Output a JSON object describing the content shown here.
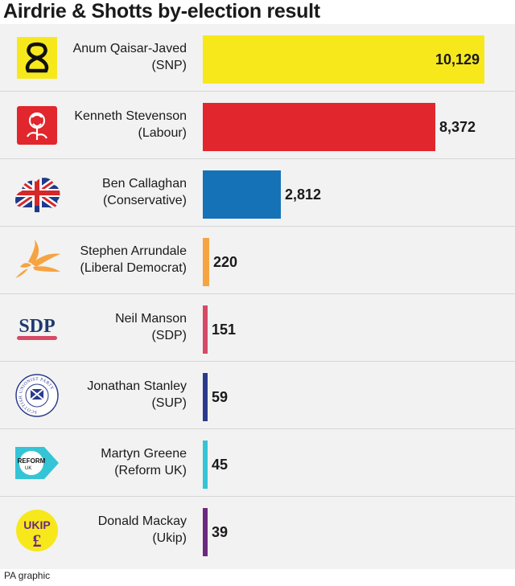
{
  "title": "Airdrie & Shotts by-election result",
  "footer": "PA graphic",
  "logos": {
    "sdp_text": "SDP",
    "reform_text": "REFORM",
    "reform_sub": "UK",
    "ukip_text": "UKIP",
    "ukip_symbol": "£",
    "sup_ring_text": "SCOTTISH UNIONIST PARTY"
  },
  "chart_data": {
    "type": "bar",
    "orientation": "horizontal",
    "title": "Airdrie & Shotts by-election result",
    "xlim": [
      0,
      10129
    ],
    "categories": [
      "Anum Qaisar-Javed (SNP)",
      "Kenneth Stevenson (Labour)",
      "Ben Callaghan (Conservative)",
      "Stephen Arrundale (Liberal Democrat)",
      "Neil Manson (SDP)",
      "Jonathan Stanley (SUP)",
      "Martyn Greene (Reform UK)",
      "Donald Mackay (Ukip)"
    ],
    "values": [
      10129,
      8372,
      2812,
      220,
      151,
      59,
      45,
      39
    ],
    "rows": [
      {
        "name": "Anum Qaisar-Javed",
        "party": "(SNP)",
        "votes": 10129,
        "label": "10,129",
        "color": "#f7e81c",
        "logo": "snp-logo-icon"
      },
      {
        "name": "Kenneth Stevenson",
        "party": "(Labour)",
        "votes": 8372,
        "label": "8,372",
        "color": "#e1262d",
        "logo": "labour-rose-icon"
      },
      {
        "name": "Ben Callaghan",
        "party": "(Conservative)",
        "votes": 2812,
        "label": "2,812",
        "color": "#1572b6",
        "logo": "conservative-tree-icon"
      },
      {
        "name": "Stephen Arrundale",
        "party": "(Liberal Democrat)",
        "votes": 220,
        "label": "220",
        "color": "#f6a341",
        "logo": "libdem-bird-icon"
      },
      {
        "name": "Neil Manson",
        "party": "(SDP)",
        "votes": 151,
        "label": "151",
        "color": "#d64a66",
        "logo": "sdp-logo-icon"
      },
      {
        "name": "Jonathan Stanley",
        "party": "(SUP)",
        "votes": 59,
        "label": "59",
        "color": "#2b3a8c",
        "logo": "sup-logo-icon"
      },
      {
        "name": "Martyn Greene",
        "party": "(Reform UK)",
        "votes": 45,
        "label": "45",
        "color": "#35c4d6",
        "logo": "reform-uk-logo-icon"
      },
      {
        "name": "Donald Mackay",
        "party": "(Ukip)",
        "votes": 39,
        "label": "39",
        "color": "#6b2a7f",
        "logo": "ukip-logo-icon"
      }
    ]
  }
}
